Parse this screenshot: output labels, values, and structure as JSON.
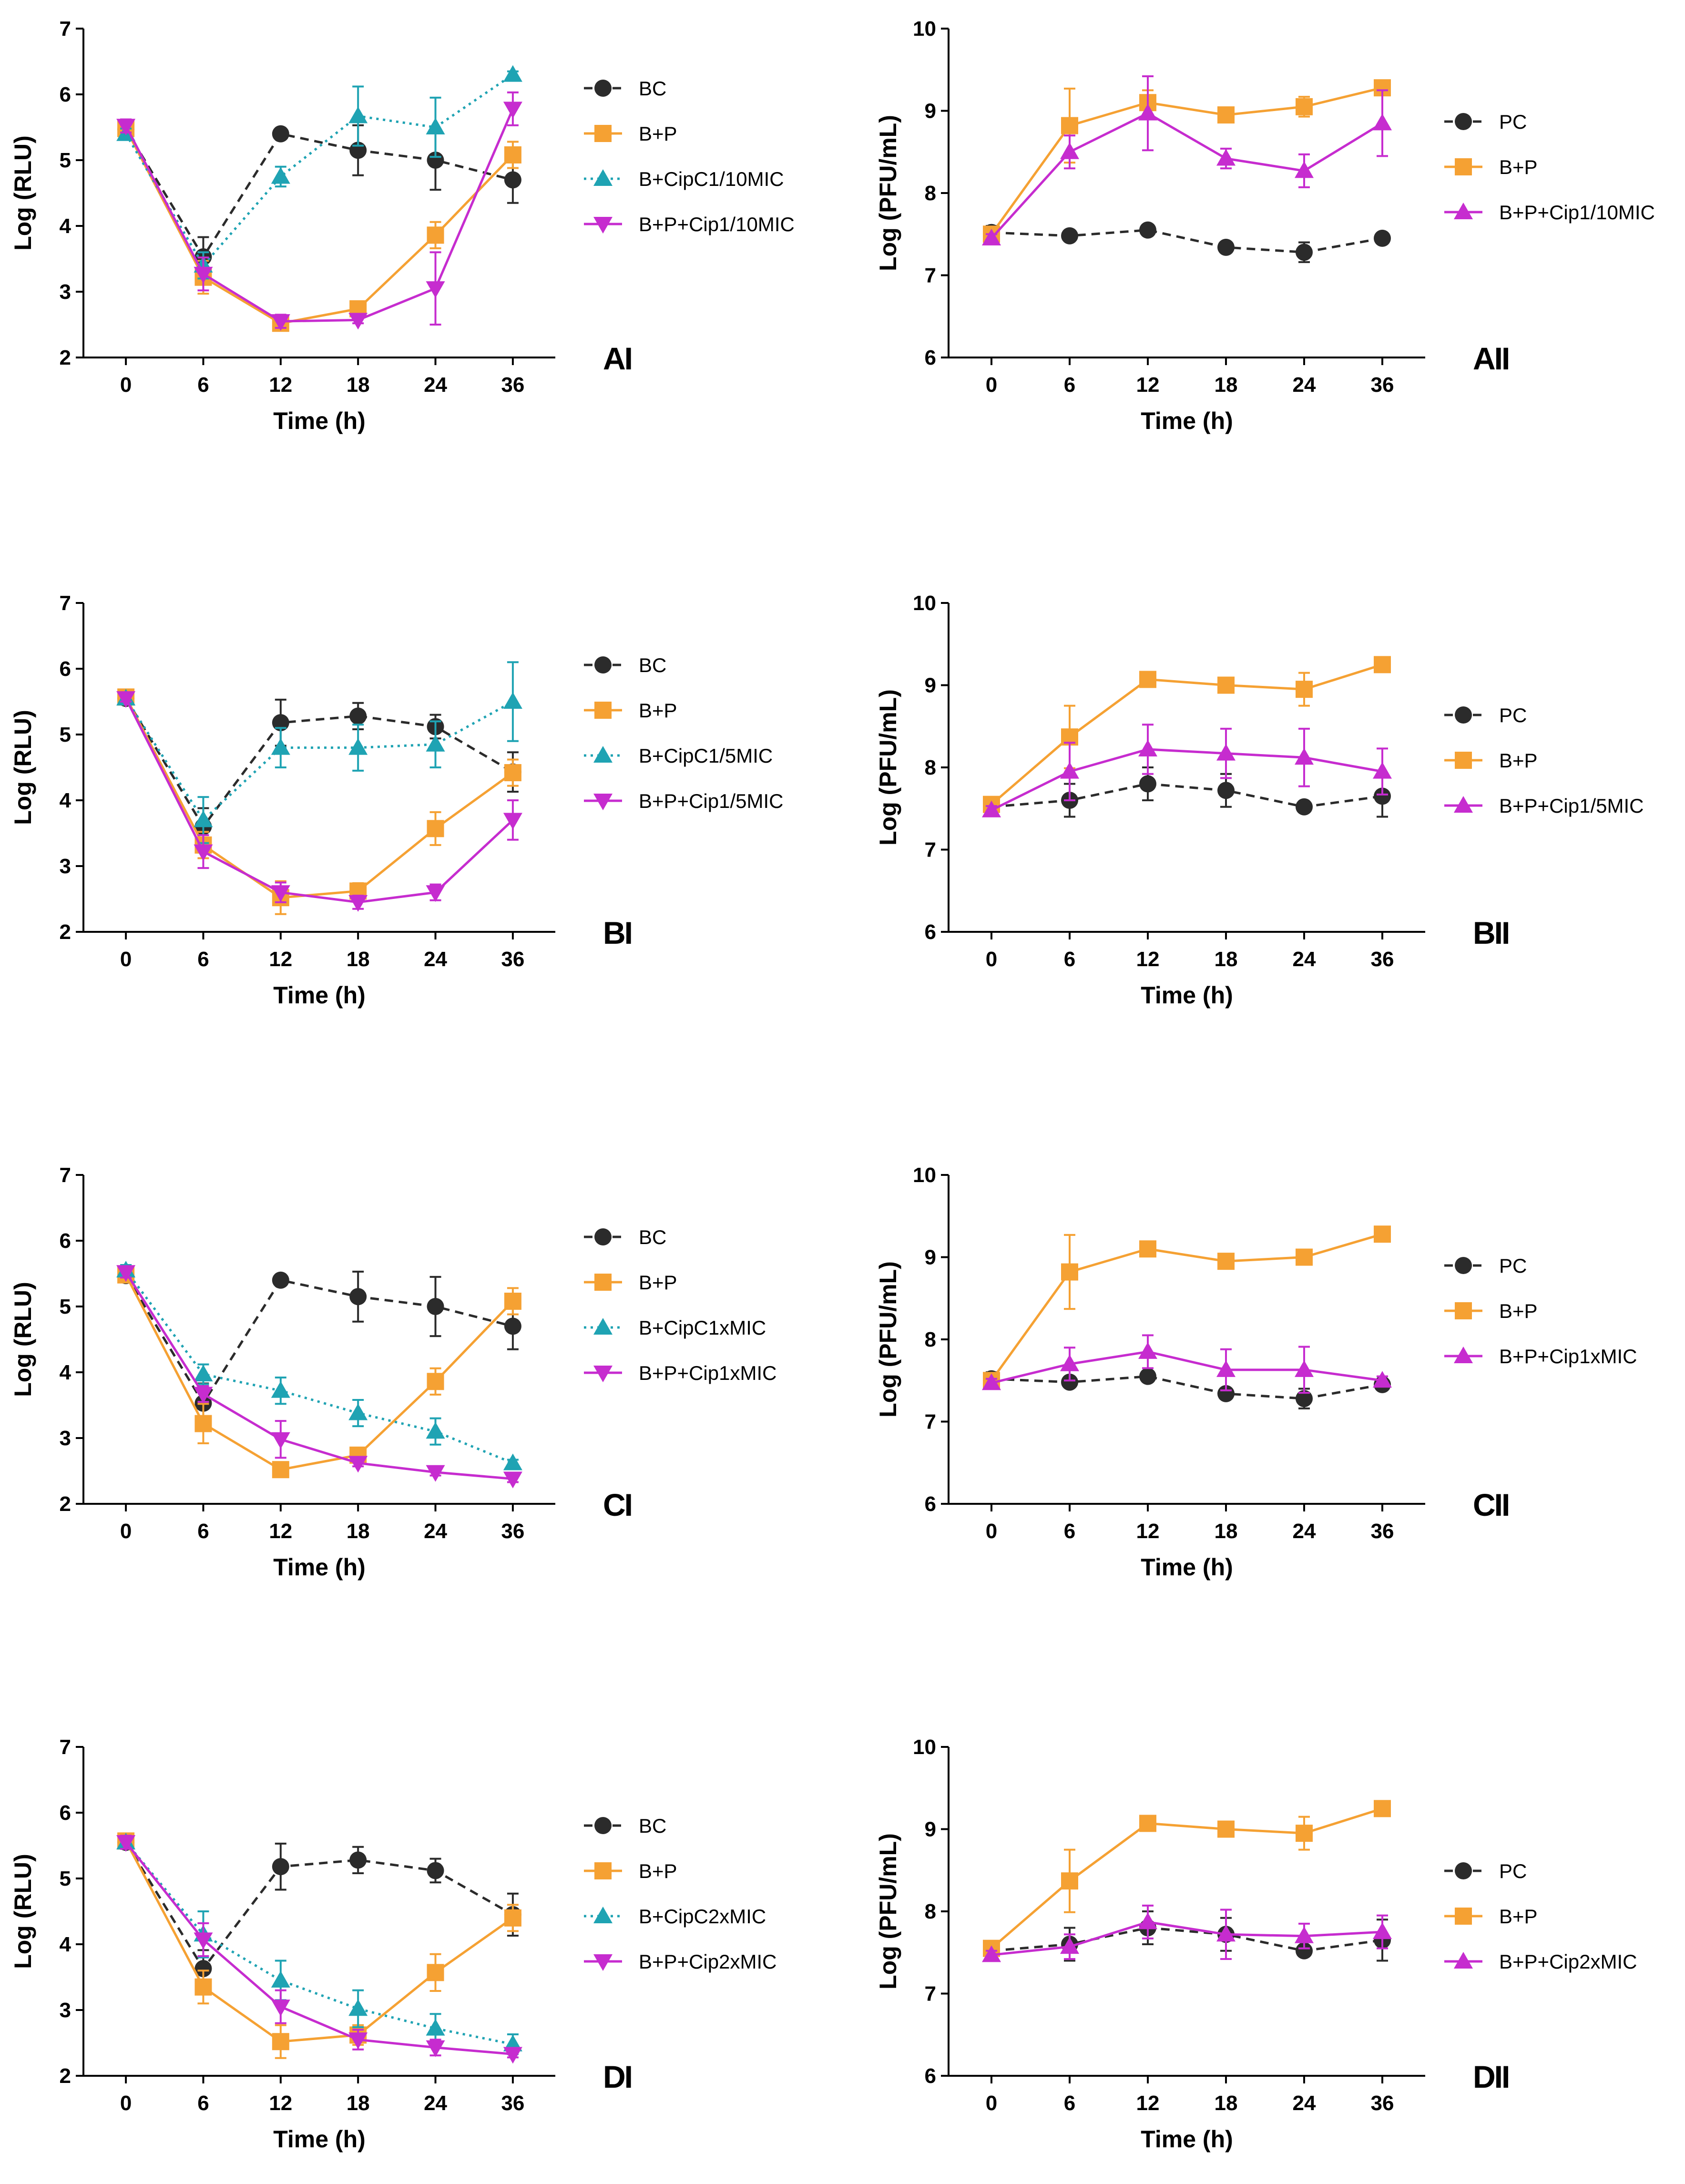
{
  "colors": {
    "BC": "#2b2b2b",
    "PC": "#2b2b2b",
    "BP": "#f5a133",
    "Cip": "#1fa3b3",
    "BPCip": "#c62ccf"
  },
  "chart_data": [
    {
      "type": "line",
      "panel": "AI",
      "xlabel": "Time (h)",
      "ylabel": "Log (RLU)",
      "ylim": [
        2,
        7
      ],
      "yticks": [
        2,
        3,
        4,
        5,
        6,
        7
      ],
      "categories": [
        "0",
        "6",
        "12",
        "18",
        "24",
        "36"
      ],
      "series": [
        {
          "name": "BC",
          "key": "BC",
          "marker": "circle",
          "dash": "dashed",
          "values": [
            5.47,
            3.53,
            5.4,
            5.15,
            5.0,
            4.7
          ],
          "err": [
            0.05,
            0.3,
            0.05,
            0.38,
            0.45,
            0.35
          ]
        },
        {
          "name": "B+P",
          "key": "BP",
          "marker": "square",
          "dash": "solid",
          "values": [
            5.48,
            3.22,
            2.52,
            2.74,
            3.86,
            5.08
          ],
          "err": [
            0.1,
            0.25,
            0.1,
            0.08,
            0.2,
            0.2
          ]
        },
        {
          "name": "B+CipC1/10MIC",
          "key": "Cip",
          "marker": "triangle-up",
          "dash": "dotted",
          "values": [
            5.4,
            3.4,
            4.75,
            5.67,
            5.5,
            6.3
          ],
          "err": [
            0.08,
            0.2,
            0.15,
            0.45,
            0.45,
            0.05
          ]
        },
        {
          "name": "B+P+Cip1/10MIC",
          "key": "BPCip",
          "marker": "triangle-down",
          "dash": "solid",
          "values": [
            5.52,
            3.27,
            2.55,
            2.57,
            3.05,
            5.78
          ],
          "err": [
            0.1,
            0.25,
            0.1,
            0.05,
            0.55,
            0.25
          ]
        }
      ]
    },
    {
      "type": "line",
      "panel": "AII",
      "xlabel": "Time (h)",
      "ylabel": "Log (PFU/mL)",
      "ylim": [
        6,
        10
      ],
      "yticks": [
        6,
        7,
        8,
        9,
        10
      ],
      "categories": [
        "0",
        "6",
        "12",
        "18",
        "24",
        "36"
      ],
      "series": [
        {
          "name": "PC",
          "key": "PC",
          "marker": "circle",
          "dash": "dashed",
          "values": [
            7.52,
            7.48,
            7.55,
            7.34,
            7.28,
            7.45
          ],
          "err": [
            0.08,
            0.05,
            0.05,
            0.05,
            0.12,
            0.05
          ]
        },
        {
          "name": "B+P",
          "key": "BP",
          "marker": "square",
          "dash": "solid",
          "values": [
            7.5,
            8.82,
            9.1,
            8.95,
            9.05,
            9.28
          ],
          "err": [
            0.05,
            0.45,
            0.15,
            0.05,
            0.12,
            0.05
          ]
        },
        {
          "name": "B+P+Cip1/10MIC",
          "key": "BPCip",
          "marker": "triangle-up",
          "dash": "solid",
          "values": [
            7.45,
            8.5,
            8.97,
            8.42,
            8.27,
            8.85
          ],
          "err": [
            0.05,
            0.2,
            0.45,
            0.12,
            0.2,
            0.4
          ]
        }
      ]
    },
    {
      "type": "line",
      "panel": "BI",
      "xlabel": "Time (h)",
      "ylabel": "Log (RLU)",
      "ylim": [
        2,
        7
      ],
      "yticks": [
        2,
        3,
        4,
        5,
        6,
        7
      ],
      "categories": [
        "0",
        "6",
        "12",
        "18",
        "24",
        "36"
      ],
      "series": [
        {
          "name": "BC",
          "key": "BC",
          "marker": "circle",
          "dash": "dashed",
          "values": [
            5.55,
            3.6,
            5.18,
            5.28,
            5.12,
            4.43
          ],
          "err": [
            0.05,
            0.28,
            0.35,
            0.2,
            0.18,
            0.3
          ]
        },
        {
          "name": "B+P",
          "key": "BP",
          "marker": "square",
          "dash": "solid",
          "values": [
            5.57,
            3.32,
            2.52,
            2.62,
            3.57,
            4.42
          ],
          "err": [
            0.05,
            0.2,
            0.25,
            0.12,
            0.25,
            0.2
          ]
        },
        {
          "name": "B+CipC1/5MIC",
          "key": "Cip",
          "marker": "triangle-up",
          "dash": "dotted",
          "values": [
            5.55,
            3.7,
            4.8,
            4.8,
            4.85,
            5.5
          ],
          "err": [
            0.05,
            0.35,
            0.3,
            0.35,
            0.35,
            0.6
          ]
        },
        {
          "name": "B+P+Cip1/5MIC",
          "key": "BPCip",
          "marker": "triangle-down",
          "dash": "solid",
          "values": [
            5.55,
            3.22,
            2.6,
            2.45,
            2.6,
            3.7
          ],
          "err": [
            0.05,
            0.25,
            0.15,
            0.1,
            0.12,
            0.3
          ]
        }
      ]
    },
    {
      "type": "line",
      "panel": "BII",
      "xlabel": "Time (h)",
      "ylabel": "Log (PFU/mL)",
      "ylim": [
        6,
        10
      ],
      "yticks": [
        6,
        7,
        8,
        9,
        10
      ],
      "categories": [
        "0",
        "6",
        "12",
        "18",
        "24",
        "36"
      ],
      "series": [
        {
          "name": "PC",
          "key": "PC",
          "marker": "circle",
          "dash": "dashed",
          "values": [
            7.52,
            7.6,
            7.8,
            7.72,
            7.52,
            7.65
          ],
          "err": [
            0.05,
            0.2,
            0.2,
            0.2,
            0.05,
            0.25
          ]
        },
        {
          "name": "B+P",
          "key": "BP",
          "marker": "square",
          "dash": "solid",
          "values": [
            7.55,
            8.37,
            9.07,
            9.0,
            8.95,
            9.25
          ],
          "err": [
            0.05,
            0.38,
            0.05,
            0.05,
            0.2,
            0.05
          ]
        },
        {
          "name": "B+P+Cip1/5MIC",
          "key": "BPCip",
          "marker": "triangle-up",
          "dash": "solid",
          "values": [
            7.48,
            7.95,
            8.22,
            8.17,
            8.12,
            7.95
          ],
          "err": [
            0.05,
            0.35,
            0.3,
            0.3,
            0.35,
            0.28
          ]
        }
      ]
    },
    {
      "type": "line",
      "panel": "CI",
      "xlabel": "Time (h)",
      "ylabel": "Log (RLU)",
      "ylim": [
        2,
        7
      ],
      "yticks": [
        2,
        3,
        4,
        5,
        6,
        7
      ],
      "categories": [
        "0",
        "6",
        "12",
        "18",
        "24",
        "36"
      ],
      "series": [
        {
          "name": "BC",
          "key": "BC",
          "marker": "circle",
          "dash": "dashed",
          "values": [
            5.47,
            3.53,
            5.4,
            5.15,
            5.0,
            4.7
          ],
          "err": [
            0.05,
            0.3,
            0.05,
            0.38,
            0.45,
            0.35
          ]
        },
        {
          "name": "B+P",
          "key": "BP",
          "marker": "square",
          "dash": "solid",
          "values": [
            5.48,
            3.22,
            2.52,
            2.74,
            3.86,
            5.08
          ],
          "err": [
            0.1,
            0.3,
            0.1,
            0.08,
            0.2,
            0.2
          ]
        },
        {
          "name": "B+CipC1xMIC",
          "key": "Cip",
          "marker": "triangle-up",
          "dash": "dotted",
          "values": [
            5.55,
            3.97,
            3.72,
            3.38,
            3.1,
            2.62
          ],
          "err": [
            0.08,
            0.15,
            0.2,
            0.2,
            0.2,
            0.05
          ]
        },
        {
          "name": "B+P+Cip1xMIC",
          "key": "BPCip",
          "marker": "triangle-down",
          "dash": "solid",
          "values": [
            5.52,
            3.67,
            2.98,
            2.62,
            2.48,
            2.38
          ],
          "err": [
            0.08,
            0.12,
            0.28,
            0.05,
            0.05,
            0.05
          ]
        }
      ]
    },
    {
      "type": "line",
      "panel": "CII",
      "xlabel": "Time (h)",
      "ylabel": "Log (PFU/mL)",
      "ylim": [
        6,
        10
      ],
      "yticks": [
        6,
        7,
        8,
        9,
        10
      ],
      "categories": [
        "0",
        "6",
        "12",
        "18",
        "24",
        "36"
      ],
      "series": [
        {
          "name": "PC",
          "key": "PC",
          "marker": "circle",
          "dash": "dashed",
          "values": [
            7.52,
            7.48,
            7.55,
            7.34,
            7.28,
            7.45
          ],
          "err": [
            0.08,
            0.05,
            0.05,
            0.05,
            0.12,
            0.05
          ]
        },
        {
          "name": "B+P",
          "key": "BP",
          "marker": "square",
          "dash": "solid",
          "values": [
            7.5,
            8.82,
            9.1,
            8.95,
            9.0,
            9.28
          ],
          "err": [
            0.05,
            0.45,
            0.08,
            0.05,
            0.08,
            0.05
          ]
        },
        {
          "name": "B+P+Cip1xMIC",
          "key": "BPCip",
          "marker": "triangle-up",
          "dash": "solid",
          "values": [
            7.47,
            7.7,
            7.85,
            7.63,
            7.63,
            7.5
          ],
          "err": [
            0.05,
            0.2,
            0.2,
            0.25,
            0.28,
            0.05
          ]
        }
      ]
    },
    {
      "type": "line",
      "panel": "DI",
      "xlabel": "Time (h)",
      "ylabel": "Log (RLU)",
      "ylim": [
        2,
        7
      ],
      "yticks": [
        2,
        3,
        4,
        5,
        6,
        7
      ],
      "categories": [
        "0",
        "6",
        "12",
        "18",
        "24",
        "36"
      ],
      "series": [
        {
          "name": "BC",
          "key": "BC",
          "marker": "circle",
          "dash": "dashed",
          "values": [
            5.55,
            3.63,
            5.18,
            5.28,
            5.12,
            4.45
          ],
          "err": [
            0.05,
            0.28,
            0.35,
            0.2,
            0.18,
            0.32
          ]
        },
        {
          "name": "B+P",
          "key": "BP",
          "marker": "square",
          "dash": "solid",
          "values": [
            5.57,
            3.35,
            2.52,
            2.62,
            3.57,
            4.4
          ],
          "err": [
            0.08,
            0.25,
            0.25,
            0.15,
            0.28,
            0.2
          ]
        },
        {
          "name": "B+CipC2xMIC",
          "key": "Cip",
          "marker": "triangle-up",
          "dash": "dotted",
          "values": [
            5.55,
            4.15,
            3.45,
            3.02,
            2.72,
            2.48
          ],
          "err": [
            0.05,
            0.35,
            0.3,
            0.28,
            0.22,
            0.15
          ]
        },
        {
          "name": "B+P+Cip2xMIC",
          "key": "BPCip",
          "marker": "triangle-down",
          "dash": "solid",
          "values": [
            5.55,
            4.07,
            3.05,
            2.55,
            2.43,
            2.33
          ],
          "err": [
            0.1,
            0.25,
            0.25,
            0.15,
            0.12,
            0.05
          ]
        }
      ]
    },
    {
      "type": "line",
      "panel": "DII",
      "xlabel": "Time (h)",
      "ylabel": "Log (PFU/mL)",
      "ylim": [
        6,
        10
      ],
      "yticks": [
        6,
        7,
        8,
        9,
        10
      ],
      "categories": [
        "0",
        "6",
        "12",
        "18",
        "24",
        "36"
      ],
      "series": [
        {
          "name": "PC",
          "key": "PC",
          "marker": "circle",
          "dash": "dashed",
          "values": [
            7.52,
            7.6,
            7.8,
            7.72,
            7.52,
            7.65
          ],
          "err": [
            0.05,
            0.2,
            0.2,
            0.2,
            0.05,
            0.25
          ]
        },
        {
          "name": "B+P",
          "key": "BP",
          "marker": "square",
          "dash": "solid",
          "values": [
            7.55,
            8.37,
            9.07,
            9.0,
            8.95,
            9.25
          ],
          "err": [
            0.05,
            0.38,
            0.05,
            0.05,
            0.2,
            0.05
          ]
        },
        {
          "name": "B+P+Cip2xMIC",
          "key": "BPCip",
          "marker": "triangle-up",
          "dash": "solid",
          "values": [
            7.47,
            7.57,
            7.87,
            7.72,
            7.7,
            7.75
          ],
          "err": [
            0.05,
            0.15,
            0.2,
            0.3,
            0.15,
            0.2
          ]
        }
      ]
    }
  ]
}
